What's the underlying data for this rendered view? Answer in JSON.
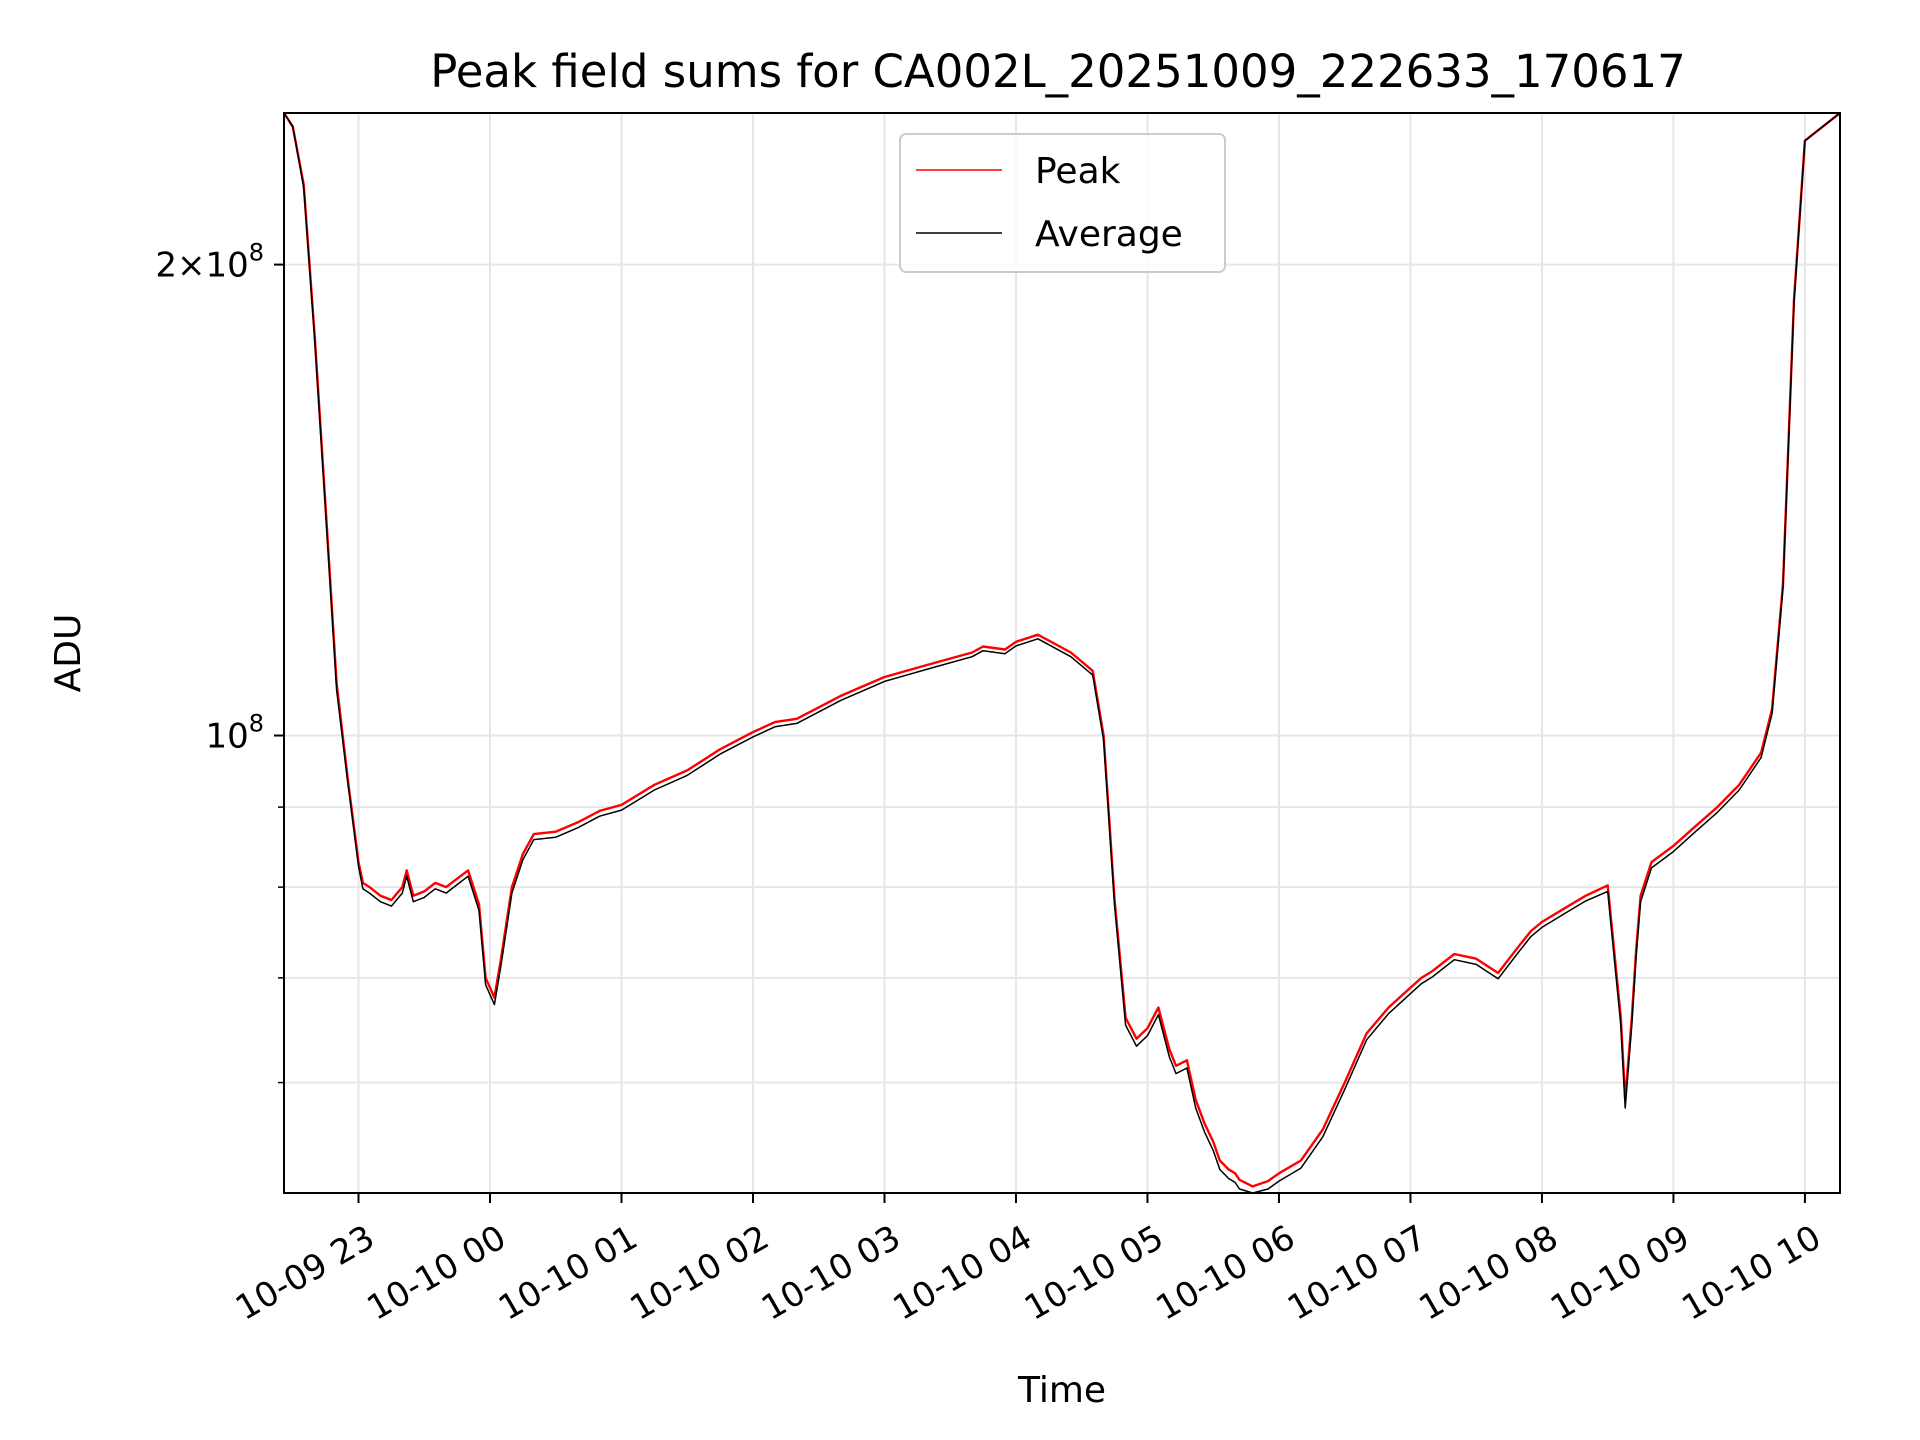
{
  "chart_data": {
    "type": "line",
    "title": "Peak field sums for CA002L_20251009_222633_170617",
    "xlabel": "Time",
    "ylabel": "ADU",
    "y_scale": "log",
    "grid": true,
    "legend_position": "top-center",
    "xlim": [
      "2025-10-09 22:26",
      "2025-10-10 10:16"
    ],
    "ylim": [
      51000000,
      250000000
    ],
    "x_ticks": [
      {
        "value": "2025-10-09 23:00",
        "label": "10-09 23"
      },
      {
        "value": "2025-10-10 00:00",
        "label": "10-10 00"
      },
      {
        "value": "2025-10-10 01:00",
        "label": "10-10 01"
      },
      {
        "value": "2025-10-10 02:00",
        "label": "10-10 02"
      },
      {
        "value": "2025-10-10 03:00",
        "label": "10-10 03"
      },
      {
        "value": "2025-10-10 04:00",
        "label": "10-10 04"
      },
      {
        "value": "2025-10-10 05:00",
        "label": "10-10 05"
      },
      {
        "value": "2025-10-10 06:00",
        "label": "10-10 06"
      },
      {
        "value": "2025-10-10 07:00",
        "label": "10-10 07"
      },
      {
        "value": "2025-10-10 08:00",
        "label": "10-10 08"
      },
      {
        "value": "2025-10-10 09:00",
        "label": "10-10 09"
      },
      {
        "value": "2025-10-10 10:00",
        "label": "10-10 10"
      }
    ],
    "y_ticks_major": [
      {
        "value": 100000000,
        "base": "10",
        "exp": "8",
        "mantissa": ""
      },
      {
        "value": 200000000,
        "base": "10",
        "exp": "8",
        "mantissa": "2×"
      }
    ],
    "y_ticks_minor": [
      60000000,
      70000000,
      80000000,
      90000000
    ],
    "series": [
      {
        "name": "Peak",
        "color": "#ff0000",
        "x": [
          "2025-10-09 22:26",
          "2025-10-09 22:30",
          "2025-10-09 22:35",
          "2025-10-09 22:40",
          "2025-10-09 22:45",
          "2025-10-09 22:50",
          "2025-10-09 22:55",
          "2025-10-09 23:00",
          "2025-10-09 23:02",
          "2025-10-09 23:05",
          "2025-10-09 23:10",
          "2025-10-09 23:15",
          "2025-10-09 23:20",
          "2025-10-09 23:22",
          "2025-10-09 23:25",
          "2025-10-09 23:30",
          "2025-10-09 23:35",
          "2025-10-09 23:40",
          "2025-10-09 23:45",
          "2025-10-09 23:50",
          "2025-10-09 23:55",
          "2025-10-09 23:58",
          "2025-10-10 00:02",
          "2025-10-10 00:05",
          "2025-10-10 00:10",
          "2025-10-10 00:15",
          "2025-10-10 00:20",
          "2025-10-10 00:30",
          "2025-10-10 00:40",
          "2025-10-10 00:50",
          "2025-10-10 01:00",
          "2025-10-10 01:15",
          "2025-10-10 01:30",
          "2025-10-10 01:45",
          "2025-10-10 02:00",
          "2025-10-10 02:10",
          "2025-10-10 02:20",
          "2025-10-10 02:40",
          "2025-10-10 03:00",
          "2025-10-10 03:20",
          "2025-10-10 03:40",
          "2025-10-10 03:45",
          "2025-10-10 03:55",
          "2025-10-10 04:00",
          "2025-10-10 04:10",
          "2025-10-10 04:20",
          "2025-10-10 04:25",
          "2025-10-10 04:35",
          "2025-10-10 04:40",
          "2025-10-10 04:45",
          "2025-10-10 04:50",
          "2025-10-10 04:55",
          "2025-10-10 05:00",
          "2025-10-10 05:05",
          "2025-10-10 05:10",
          "2025-10-10 05:13",
          "2025-10-10 05:18",
          "2025-10-10 05:22",
          "2025-10-10 05:26",
          "2025-10-10 05:30",
          "2025-10-10 05:33",
          "2025-10-10 05:37",
          "2025-10-10 05:40",
          "2025-10-10 05:42",
          "2025-10-10 05:48",
          "2025-10-10 05:55",
          "2025-10-10 06:00",
          "2025-10-10 06:10",
          "2025-10-10 06:20",
          "2025-10-10 06:30",
          "2025-10-10 06:40",
          "2025-10-10 06:50",
          "2025-10-10 07:00",
          "2025-10-10 07:05",
          "2025-10-10 07:10",
          "2025-10-10 07:20",
          "2025-10-10 07:30",
          "2025-10-10 07:40",
          "2025-10-10 07:45",
          "2025-10-10 07:50",
          "2025-10-10 07:55",
          "2025-10-10 08:00",
          "2025-10-10 08:10",
          "2025-10-10 08:20",
          "2025-10-10 08:30",
          "2025-10-10 08:36",
          "2025-10-10 08:38",
          "2025-10-10 08:41",
          "2025-10-10 08:43",
          "2025-10-10 08:45",
          "2025-10-10 08:50",
          "2025-10-10 09:00",
          "2025-10-10 09:10",
          "2025-10-10 09:20",
          "2025-10-10 09:30",
          "2025-10-10 09:40",
          "2025-10-10 09:45",
          "2025-10-10 09:50",
          "2025-10-10 09:55",
          "2025-10-10 10:00",
          "2025-10-10 10:16"
        ],
        "y": [
          250000000,
          245000000,
          225000000,
          180000000,
          140000000,
          108000000,
          94000000,
          83000000,
          80500000,
          80000000,
          79000000,
          78500000,
          80000000,
          82000000,
          79000000,
          79500000,
          80500000,
          80000000,
          81000000,
          82000000,
          78000000,
          70000000,
          68000000,
          72000000,
          80000000,
          84000000,
          86500000,
          86800000,
          88000000,
          89500000,
          90300000,
          93000000,
          95000000,
          98000000,
          100500000,
          102000000,
          102500000,
          106000000,
          109000000,
          111000000,
          113000000,
          114000000,
          113500000,
          114800000,
          116000000,
          114000000,
          113000000,
          110000000,
          100000000,
          78500000,
          66000000,
          64000000,
          65000000,
          67000000,
          63000000,
          61500000,
          62000000,
          58500000,
          56500000,
          55000000,
          53500000,
          52800000,
          52500000,
          52000000,
          51500000,
          51900000,
          52500000,
          53500000,
          56000000,
          60000000,
          64500000,
          67000000,
          69000000,
          70000000,
          70700000,
          72500000,
          72000000,
          70500000,
          72000000,
          73500000,
          75000000,
          76000000,
          77500000,
          79000000,
          80200000,
          66000000,
          58500000,
          66000000,
          73000000,
          79000000,
          83000000,
          85000000,
          87500000,
          90000000,
          93000000,
          97500000,
          104000000,
          125000000,
          190000000,
          240000000,
          250000000
        ]
      },
      {
        "name": "Average",
        "color": "#000000",
        "x": [
          "2025-10-09 22:26",
          "2025-10-09 22:30",
          "2025-10-09 22:35",
          "2025-10-09 22:40",
          "2025-10-09 22:45",
          "2025-10-09 22:50",
          "2025-10-09 22:55",
          "2025-10-09 23:00",
          "2025-10-09 23:02",
          "2025-10-09 23:05",
          "2025-10-09 23:10",
          "2025-10-09 23:15",
          "2025-10-09 23:20",
          "2025-10-09 23:22",
          "2025-10-09 23:25",
          "2025-10-09 23:30",
          "2025-10-09 23:35",
          "2025-10-09 23:40",
          "2025-10-09 23:45",
          "2025-10-09 23:50",
          "2025-10-09 23:55",
          "2025-10-09 23:58",
          "2025-10-10 00:02",
          "2025-10-10 00:05",
          "2025-10-10 00:10",
          "2025-10-10 00:15",
          "2025-10-10 00:20",
          "2025-10-10 00:30",
          "2025-10-10 00:40",
          "2025-10-10 00:50",
          "2025-10-10 01:00",
          "2025-10-10 01:15",
          "2025-10-10 01:30",
          "2025-10-10 01:45",
          "2025-10-10 02:00",
          "2025-10-10 02:10",
          "2025-10-10 02:20",
          "2025-10-10 02:40",
          "2025-10-10 03:00",
          "2025-10-10 03:20",
          "2025-10-10 03:40",
          "2025-10-10 03:45",
          "2025-10-10 03:55",
          "2025-10-10 04:00",
          "2025-10-10 04:10",
          "2025-10-10 04:20",
          "2025-10-10 04:25",
          "2025-10-10 04:35",
          "2025-10-10 04:40",
          "2025-10-10 04:45",
          "2025-10-10 04:50",
          "2025-10-10 04:55",
          "2025-10-10 05:00",
          "2025-10-10 05:05",
          "2025-10-10 05:10",
          "2025-10-10 05:13",
          "2025-10-10 05:18",
          "2025-10-10 05:22",
          "2025-10-10 05:26",
          "2025-10-10 05:30",
          "2025-10-10 05:33",
          "2025-10-10 05:37",
          "2025-10-10 05:40",
          "2025-10-10 05:42",
          "2025-10-10 05:48",
          "2025-10-10 05:55",
          "2025-10-10 06:00",
          "2025-10-10 06:10",
          "2025-10-10 06:20",
          "2025-10-10 06:30",
          "2025-10-10 06:40",
          "2025-10-10 06:50",
          "2025-10-10 07:00",
          "2025-10-10 07:05",
          "2025-10-10 07:10",
          "2025-10-10 07:20",
          "2025-10-10 07:30",
          "2025-10-10 07:40",
          "2025-10-10 07:45",
          "2025-10-10 07:50",
          "2025-10-10 07:55",
          "2025-10-10 08:00",
          "2025-10-10 08:10",
          "2025-10-10 08:20",
          "2025-10-10 08:30",
          "2025-10-10 08:36",
          "2025-10-10 08:38",
          "2025-10-10 08:41",
          "2025-10-10 08:43",
          "2025-10-10 08:45",
          "2025-10-10 08:50",
          "2025-10-10 09:00",
          "2025-10-10 09:10",
          "2025-10-10 09:20",
          "2025-10-10 09:30",
          "2025-10-10 09:40",
          "2025-10-10 09:45",
          "2025-10-10 09:50",
          "2025-10-10 09:55",
          "2025-10-10 10:00",
          "2025-10-10 10:16"
        ],
        "y": [
          250000000,
          245000000,
          224000000,
          179000000,
          139000000,
          107000000,
          93500000,
          82500000,
          79800000,
          79300000,
          78300000,
          77800000,
          79300000,
          81300000,
          78300000,
          78800000,
          79800000,
          79300000,
          80300000,
          81300000,
          77300000,
          69300000,
          67300000,
          71300000,
          79300000,
          83300000,
          85800000,
          86100000,
          87300000,
          88800000,
          89600000,
          92300000,
          94300000,
          97300000,
          99800000,
          101300000,
          101800000,
          105300000,
          108300000,
          110300000,
          112300000,
          113300000,
          112800000,
          114100000,
          115300000,
          113300000,
          112300000,
          109300000,
          99300000,
          77800000,
          65300000,
          63300000,
          64300000,
          66300000,
          62300000,
          60800000,
          61300000,
          57800000,
          55800000,
          54300000,
          52800000,
          52100000,
          51800000,
          51300000,
          50900000,
          51300000,
          51900000,
          52900000,
          55400000,
          59400000,
          63900000,
          66400000,
          68400000,
          69400000,
          70100000,
          71900000,
          71400000,
          69900000,
          71400000,
          72900000,
          74400000,
          75400000,
          76900000,
          78400000,
          79500000,
          65300000,
          57800000,
          65300000,
          72300000,
          78300000,
          82300000,
          84300000,
          86800000,
          89300000,
          92300000,
          96800000,
          103300000,
          124300000,
          189000000,
          240000000,
          250000000
        ]
      }
    ]
  }
}
